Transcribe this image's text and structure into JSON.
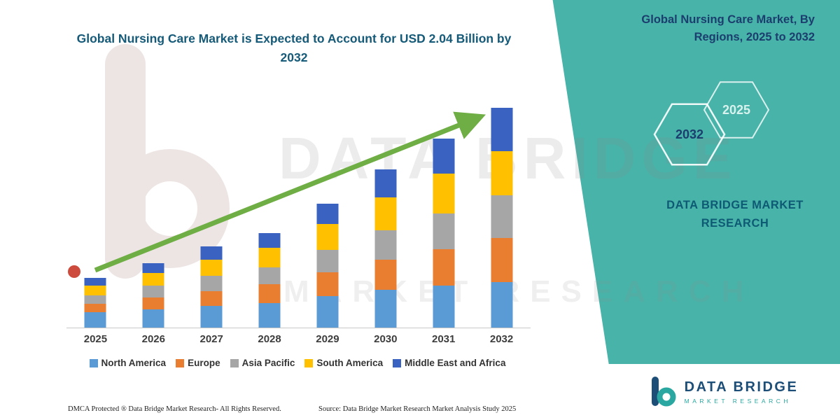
{
  "chart": {
    "title": "Global Nursing Care Market is Expected to Account for USD 2.04 Billion by 2032"
  },
  "right_panel": {
    "title": "Global Nursing Care Market, By Regions, 2025 to 2032",
    "hexagon_years": {
      "front": "2032",
      "back": "2025"
    },
    "brand_text": "DATA BRIDGE MARKET RESEARCH"
  },
  "corner_logo": {
    "name": "DATA BRIDGE",
    "subtitle": "MARKET RESEARCH"
  },
  "watermark": {
    "line1": "DATA BRIDGE",
    "line2": "MARKET RESEARCH"
  },
  "footer": {
    "dmca": "DMCA Protected ® Data Bridge Market Research-  All Rights Reserved.",
    "source": "Source: Data Bridge Market Research  Market Analysis Study 2025"
  },
  "colors": {
    "teal_bg": "#47b3a9",
    "chart_title": "#155a78",
    "right_title": "#1c3e6e",
    "brand_text": "#0e5a74",
    "navy": "#1c4e78",
    "logo_teal": "#2aa7a0",
    "arrow": "#6fae44",
    "hex_back_year": "#d9f2ee"
  },
  "chart_data": {
    "type": "bar",
    "stacked": true,
    "title": "Global Nursing Care Market is Expected to Account for USD 2.04 Billion by 2032",
    "categories": [
      "2025",
      "2026",
      "2027",
      "2028",
      "2029",
      "2030",
      "2031",
      "2032"
    ],
    "series": [
      {
        "name": "North America",
        "color": "#5b9bd5",
        "values": [
          0.14,
          0.17,
          0.2,
          0.23,
          0.29,
          0.35,
          0.39,
          0.42
        ]
      },
      {
        "name": "Europe",
        "color": "#e97e30",
        "values": [
          0.08,
          0.11,
          0.14,
          0.17,
          0.22,
          0.28,
          0.34,
          0.41
        ]
      },
      {
        "name": "Asia Pacific",
        "color": "#a6a6a6",
        "values": [
          0.08,
          0.11,
          0.14,
          0.16,
          0.21,
          0.27,
          0.33,
          0.4
        ]
      },
      {
        "name": "South America",
        "color": "#ffc000",
        "values": [
          0.09,
          0.12,
          0.15,
          0.18,
          0.24,
          0.31,
          0.37,
          0.41
        ]
      },
      {
        "name": "Middle East and Africa",
        "color": "#3a62c1",
        "values": [
          0.07,
          0.09,
          0.12,
          0.14,
          0.19,
          0.26,
          0.32,
          0.4
        ]
      }
    ],
    "totals_estimated": [
      0.46,
      0.6,
      0.75,
      0.88,
      1.15,
      1.47,
      1.75,
      2.04
    ],
    "value_unit": "USD Billion",
    "ylim": [
      0,
      2.2
    ],
    "xlabel": "",
    "ylabel": "",
    "grid": false,
    "legend_position": "bottom",
    "annotations": [
      "upward growth trend arrow from 2025 to 2032"
    ]
  }
}
